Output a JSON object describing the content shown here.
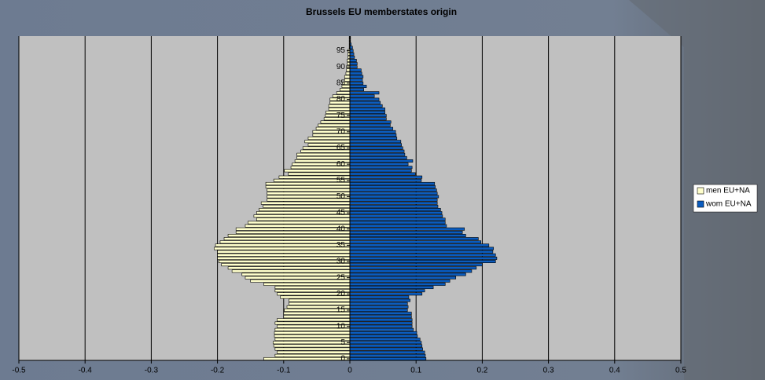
{
  "chart_data": {
    "type": "pyramid",
    "title": "Brussels EU memberstates origin",
    "categories": [
      "0",
      null,
      null,
      null,
      null,
      "5",
      null,
      null,
      null,
      null,
      "10",
      null,
      null,
      null,
      null,
      "15",
      null,
      null,
      null,
      null,
      "20",
      null,
      null,
      null,
      null,
      "25",
      null,
      null,
      null,
      null,
      "30",
      null,
      null,
      null,
      null,
      "35",
      null,
      null,
      null,
      null,
      "40",
      null,
      null,
      null,
      null,
      "45",
      null,
      null,
      null,
      null,
      "50",
      null,
      null,
      null,
      null,
      "55",
      null,
      null,
      null,
      null,
      "60",
      null,
      null,
      null,
      null,
      "65",
      null,
      null,
      null,
      null,
      "70",
      null,
      null,
      null,
      null,
      "75",
      null,
      null,
      null,
      null,
      "80",
      null,
      null,
      null,
      null,
      "85",
      null,
      null,
      null,
      null,
      "90",
      null,
      null,
      null,
      null,
      "95",
      null,
      null,
      null,
      null
    ],
    "series": [
      {
        "name": "men EU+NA",
        "color": "#ffffcc",
        "values": [
          -0.13,
          -0.113,
          -0.11,
          -0.113,
          -0.115,
          -0.116,
          -0.113,
          -0.114,
          -0.114,
          -0.113,
          -0.11,
          -0.113,
          -0.11,
          -0.1,
          -0.1,
          -0.099,
          -0.095,
          -0.092,
          -0.092,
          -0.105,
          -0.11,
          -0.113,
          -0.113,
          -0.13,
          -0.15,
          -0.158,
          -0.163,
          -0.178,
          -0.184,
          -0.194,
          -0.198,
          -0.2,
          -0.2,
          -0.2,
          -0.205,
          -0.203,
          -0.196,
          -0.19,
          -0.184,
          -0.172,
          -0.172,
          -0.158,
          -0.154,
          -0.141,
          -0.145,
          -0.141,
          -0.137,
          -0.131,
          -0.134,
          -0.125,
          -0.125,
          -0.125,
          -0.125,
          -0.127,
          -0.127,
          -0.115,
          -0.107,
          -0.093,
          -0.099,
          -0.089,
          -0.087,
          -0.083,
          -0.08,
          -0.08,
          -0.074,
          -0.071,
          -0.063,
          -0.068,
          -0.063,
          -0.056,
          -0.056,
          -0.051,
          -0.048,
          -0.044,
          -0.039,
          -0.037,
          -0.036,
          -0.032,
          -0.032,
          -0.03,
          -0.03,
          -0.026,
          -0.02,
          -0.015,
          -0.012,
          -0.011,
          -0.008,
          -0.008,
          -0.006,
          -0.005,
          -0.005,
          -0.004,
          -0.004,
          -0.003,
          -0.003,
          -0.003,
          -0.001,
          -0.001,
          -0.001,
          -0.001
        ]
      },
      {
        "name": "wom EU+NA",
        "color": "#0a5cbf",
        "values": [
          0.115,
          0.114,
          0.113,
          0.11,
          0.109,
          0.108,
          0.106,
          0.102,
          0.101,
          0.096,
          0.094,
          0.094,
          0.094,
          0.093,
          0.093,
          0.087,
          0.088,
          0.087,
          0.091,
          0.089,
          0.109,
          0.113,
          0.126,
          0.144,
          0.151,
          0.16,
          0.175,
          0.184,
          0.191,
          0.2,
          0.22,
          0.222,
          0.22,
          0.216,
          0.217,
          0.21,
          0.198,
          0.194,
          0.175,
          0.17,
          0.173,
          0.146,
          0.144,
          0.144,
          0.14,
          0.139,
          0.137,
          0.133,
          0.132,
          0.132,
          0.134,
          0.132,
          0.131,
          0.129,
          0.128,
          0.108,
          0.109,
          0.099,
          0.093,
          0.094,
          0.088,
          0.095,
          0.086,
          0.083,
          0.082,
          0.08,
          0.078,
          0.077,
          0.071,
          0.07,
          0.069,
          0.065,
          0.061,
          0.062,
          0.055,
          0.055,
          0.053,
          0.053,
          0.049,
          0.046,
          0.044,
          0.037,
          0.044,
          0.021,
          0.025,
          0.02,
          0.019,
          0.02,
          0.018,
          0.017,
          0.011,
          0.011,
          0.01,
          0.007,
          0.006,
          0.005,
          0.004,
          0.002,
          0.001,
          0.001
        ]
      }
    ],
    "xlim": [
      -0.5,
      0.5
    ],
    "xticks": [
      -0.5,
      -0.4,
      -0.3,
      -0.2,
      -0.1,
      0,
      0.1,
      0.2,
      0.3,
      0.4,
      0.5
    ],
    "grid": true,
    "legend": "right"
  }
}
